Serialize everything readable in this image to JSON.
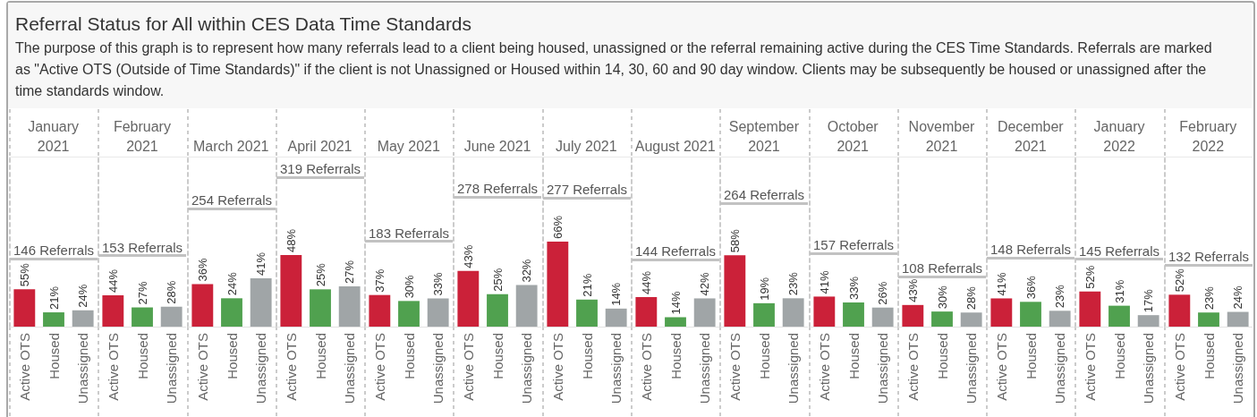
{
  "chart_data": [
    {
      "type": "other",
      "title": "Referral Status for All within CES Data Time Standards",
      "subtitle": "The purpose of this graph is to represent how many referrals lead to a client being housed, unassigned or the referral remaining active during the CES Time Standards. Referrals are marked as \"Active OTS (Outside of Time Standards)\" if the client is not Unassigned or Housed within 14, 30, 60 and 90 day window. Clients may be subsequently be housed or unassigned after the time standards window."
    },
    {
      "type": "bar",
      "title": "January 2021",
      "categories": [
        "Active OTS",
        "Housed",
        "Unassigned"
      ],
      "values": [
        55,
        21,
        24
      ],
      "value_labels": [
        "55%",
        "21%",
        "24%"
      ],
      "colors": [
        "#cb2139",
        "#50a14f",
        "#a0a5a7"
      ],
      "ylim": [
        0,
        250
      ],
      "tick_labels": "x",
      "ref_lines": [
        {
          "axis": "y",
          "value": 100,
          "label": "146 Referrals",
          "color": "#c2c2c2"
        }
      ]
    },
    {
      "type": "bar",
      "title": "February 2021",
      "categories": [
        "Active OTS",
        "Housed",
        "Unassigned"
      ],
      "values": [
        44,
        27,
        28
      ],
      "value_labels": [
        "44%",
        "27%",
        "28%"
      ],
      "colors": [
        "#cb2139",
        "#50a14f",
        "#a0a5a7"
      ],
      "ylim": [
        0,
        239
      ],
      "tick_labels": "x",
      "ref_lines": [
        {
          "axis": "y",
          "value": 100,
          "label": "153 Referrals",
          "color": "#c2c2c2"
        }
      ]
    },
    {
      "type": "bar",
      "title": "March 2021",
      "categories": [
        "Active OTS",
        "Housed",
        "Unassigned"
      ],
      "values": [
        36,
        24,
        41
      ],
      "value_labels": [
        "36%",
        "24%",
        "41%"
      ],
      "colors": [
        "#cb2139",
        "#50a14f",
        "#a0a5a7"
      ],
      "ylim": [
        0,
        144
      ],
      "tick_labels": "x",
      "ref_lines": [
        {
          "axis": "y",
          "value": 100,
          "label": "254 Referrals",
          "color": "#c2c2c2"
        }
      ]
    },
    {
      "type": "bar",
      "title": "April 2021",
      "categories": [
        "Active OTS",
        "Housed",
        "Unassigned"
      ],
      "values": [
        48,
        25,
        27
      ],
      "value_labels": [
        "48%",
        "25%",
        "27%"
      ],
      "colors": [
        "#cb2139",
        "#50a14f",
        "#a0a5a7"
      ],
      "ylim": [
        0,
        114
      ],
      "tick_labels": "x",
      "ref_lines": [
        {
          "axis": "y",
          "value": 100,
          "label": "319 Referrals",
          "color": "#c2c2c2"
        }
      ]
    },
    {
      "type": "bar",
      "title": "May 2021",
      "categories": [
        "Active OTS",
        "Housed",
        "Unassigned"
      ],
      "values": [
        37,
        30,
        33
      ],
      "value_labels": [
        "37%",
        "30%",
        "33%"
      ],
      "colors": [
        "#cb2139",
        "#50a14f",
        "#a0a5a7"
      ],
      "ylim": [
        0,
        199
      ],
      "tick_labels": "x",
      "ref_lines": [
        {
          "axis": "y",
          "value": 100,
          "label": "183 Referrals",
          "color": "#c2c2c2"
        }
      ]
    },
    {
      "type": "bar",
      "title": "June 2021",
      "categories": [
        "Active OTS",
        "Housed",
        "Unassigned"
      ],
      "values": [
        43,
        25,
        32
      ],
      "value_labels": [
        "43%",
        "25%",
        "32%"
      ],
      "colors": [
        "#cb2139",
        "#50a14f",
        "#a0a5a7"
      ],
      "ylim": [
        0,
        131
      ],
      "tick_labels": "x",
      "ref_lines": [
        {
          "axis": "y",
          "value": 100,
          "label": "278 Referrals",
          "color": "#c2c2c2"
        }
      ]
    },
    {
      "type": "bar",
      "title": "July 2021",
      "categories": [
        "Active OTS",
        "Housed",
        "Unassigned"
      ],
      "values": [
        66,
        21,
        14
      ],
      "value_labels": [
        "66%",
        "21%",
        "14%"
      ],
      "colors": [
        "#cb2139",
        "#50a14f",
        "#a0a5a7"
      ],
      "ylim": [
        0,
        132
      ],
      "tick_labels": "x",
      "ref_lines": [
        {
          "axis": "y",
          "value": 100,
          "label": "277 Referrals",
          "color": "#c2c2c2"
        }
      ]
    },
    {
      "type": "bar",
      "title": "August 2021",
      "categories": [
        "Active OTS",
        "Housed",
        "Unassigned"
      ],
      "values": [
        44,
        14,
        42
      ],
      "value_labels": [
        "44%",
        "14%",
        "42%"
      ],
      "colors": [
        "#cb2139",
        "#50a14f",
        "#a0a5a7"
      ],
      "ylim": [
        0,
        253
      ],
      "tick_labels": "x",
      "ref_lines": [
        {
          "axis": "y",
          "value": 100,
          "label": "144 Referrals",
          "color": "#c2c2c2"
        }
      ]
    },
    {
      "type": "bar",
      "title": "September 2021",
      "categories": [
        "Active OTS",
        "Housed",
        "Unassigned"
      ],
      "values": [
        58,
        19,
        23
      ],
      "value_labels": [
        "58%",
        "19%",
        "23%"
      ],
      "colors": [
        "#cb2139",
        "#50a14f",
        "#a0a5a7"
      ],
      "ylim": [
        0,
        138
      ],
      "tick_labels": "x",
      "ref_lines": [
        {
          "axis": "y",
          "value": 100,
          "label": "264 Referrals",
          "color": "#c2c2c2"
        }
      ]
    },
    {
      "type": "bar",
      "title": "October 2021",
      "categories": [
        "Active OTS",
        "Housed",
        "Unassigned"
      ],
      "values": [
        41,
        33,
        26
      ],
      "value_labels": [
        "41%",
        "33%",
        "26%"
      ],
      "colors": [
        "#cb2139",
        "#50a14f",
        "#a0a5a7"
      ],
      "ylim": [
        0,
        232
      ],
      "tick_labels": "x",
      "ref_lines": [
        {
          "axis": "y",
          "value": 100,
          "label": "157 Referrals",
          "color": "#c2c2c2"
        }
      ]
    },
    {
      "type": "bar",
      "title": "November 2021",
      "categories": [
        "Active OTS",
        "Housed",
        "Unassigned"
      ],
      "values": [
        43,
        30,
        28
      ],
      "value_labels": [
        "43%",
        "30%",
        "28%"
      ],
      "colors": [
        "#cb2139",
        "#50a14f",
        "#a0a5a7"
      ],
      "ylim": [
        0,
        338
      ],
      "tick_labels": "x",
      "ref_lines": [
        {
          "axis": "y",
          "value": 100,
          "label": "108 Referrals",
          "color": "#c2c2c2"
        }
      ]
    },
    {
      "type": "bar",
      "title": "December 2021",
      "categories": [
        "Active OTS",
        "Housed",
        "Unassigned"
      ],
      "values": [
        41,
        36,
        23
      ],
      "value_labels": [
        "41%",
        "36%",
        "23%"
      ],
      "colors": [
        "#cb2139",
        "#50a14f",
        "#a0a5a7"
      ],
      "ylim": [
        0,
        247
      ],
      "tick_labels": "x",
      "ref_lines": [
        {
          "axis": "y",
          "value": 100,
          "label": "148 Referrals",
          "color": "#c2c2c2"
        }
      ]
    },
    {
      "type": "bar",
      "title": "January 2022",
      "categories": [
        "Active OTS",
        "Housed",
        "Unassigned"
      ],
      "values": [
        52,
        31,
        17
      ],
      "value_labels": [
        "52%",
        "31%",
        "17%"
      ],
      "colors": [
        "#cb2139",
        "#50a14f",
        "#a0a5a7"
      ],
      "ylim": [
        0,
        252
      ],
      "tick_labels": "x",
      "ref_lines": [
        {
          "axis": "y",
          "value": 100,
          "label": "145 Referrals",
          "color": "#c2c2c2"
        }
      ]
    },
    {
      "type": "bar",
      "title": "February 2022",
      "categories": [
        "Active OTS",
        "Housed",
        "Unassigned"
      ],
      "values": [
        52,
        23,
        24
      ],
      "value_labels": [
        "52%",
        "23%",
        "24%"
      ],
      "colors": [
        "#cb2139",
        "#50a14f",
        "#a0a5a7"
      ],
      "ylim": [
        0,
        277
      ],
      "tick_labels": "x",
      "ref_lines": [
        {
          "axis": "y",
          "value": 100,
          "label": "132 Referrals",
          "color": "#c2c2c2"
        }
      ]
    }
  ]
}
